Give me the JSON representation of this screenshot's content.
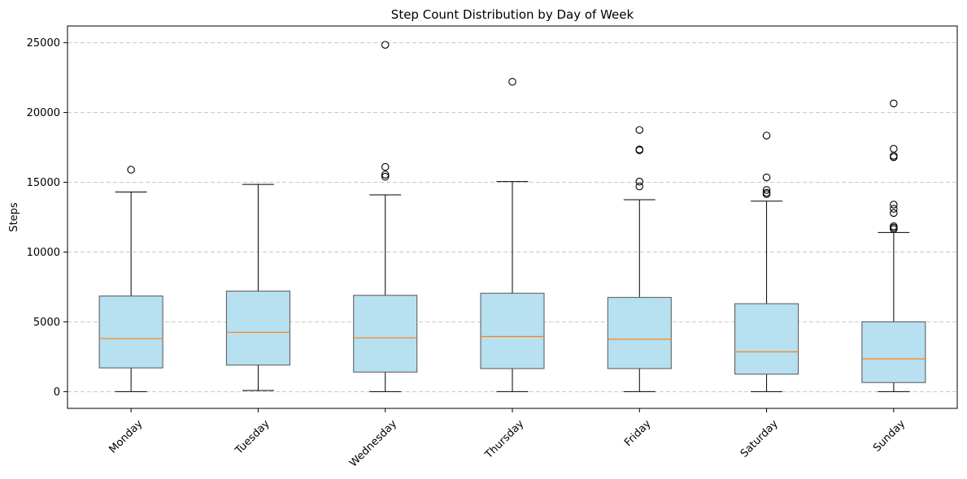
{
  "chart_data": {
    "type": "box",
    "title": "Step Count Distribution by Day of Week",
    "xlabel": "",
    "ylabel": "Steps",
    "ylim": [
      -1200,
      26200
    ],
    "yticks": [
      0,
      5000,
      10000,
      15000,
      20000,
      25000
    ],
    "ytick_labels": [
      "0",
      "5000",
      "10000",
      "15000",
      "20000",
      "25000"
    ],
    "grid": "y, dashed",
    "categories": [
      "Monday",
      "Tuesday",
      "Wednesday",
      "Thursday",
      "Friday",
      "Saturday",
      "Sunday"
    ],
    "boxes": [
      {
        "whisker_low": 0,
        "q1": 1700,
        "median": 3800,
        "q3": 6850,
        "whisker_high": 14300,
        "outliers": [
          15900
        ]
      },
      {
        "whisker_low": 80,
        "q1": 1900,
        "median": 4250,
        "q3": 7200,
        "whisker_high": 14850,
        "outliers": []
      },
      {
        "whisker_low": 0,
        "q1": 1400,
        "median": 3850,
        "q3": 6900,
        "whisker_high": 14100,
        "outliers": [
          15400,
          15550,
          16100,
          24850
        ]
      },
      {
        "whisker_low": 0,
        "q1": 1650,
        "median": 3950,
        "q3": 7050,
        "whisker_high": 15050,
        "outliers": [
          22200
        ]
      },
      {
        "whisker_low": 0,
        "q1": 1650,
        "median": 3750,
        "q3": 6750,
        "whisker_high": 13750,
        "outliers": [
          14700,
          15050,
          17300,
          17350,
          18750
        ]
      },
      {
        "whisker_low": 0,
        "q1": 1250,
        "median": 2850,
        "q3": 6300,
        "whisker_high": 13650,
        "outliers": [
          14150,
          14250,
          14450,
          15350,
          18350
        ]
      },
      {
        "whisker_low": 0,
        "q1": 650,
        "median": 2350,
        "q3": 5000,
        "whisker_high": 11400,
        "outliers": [
          11650,
          11750,
          11850,
          12800,
          13100,
          13400,
          16800,
          16900,
          17400,
          20650
        ]
      }
    ],
    "colors": {
      "box_fill": "#b7e0f0",
      "box_edge": "#555555",
      "median": "#ff7f0e",
      "grid": "#c8c8c8"
    }
  }
}
